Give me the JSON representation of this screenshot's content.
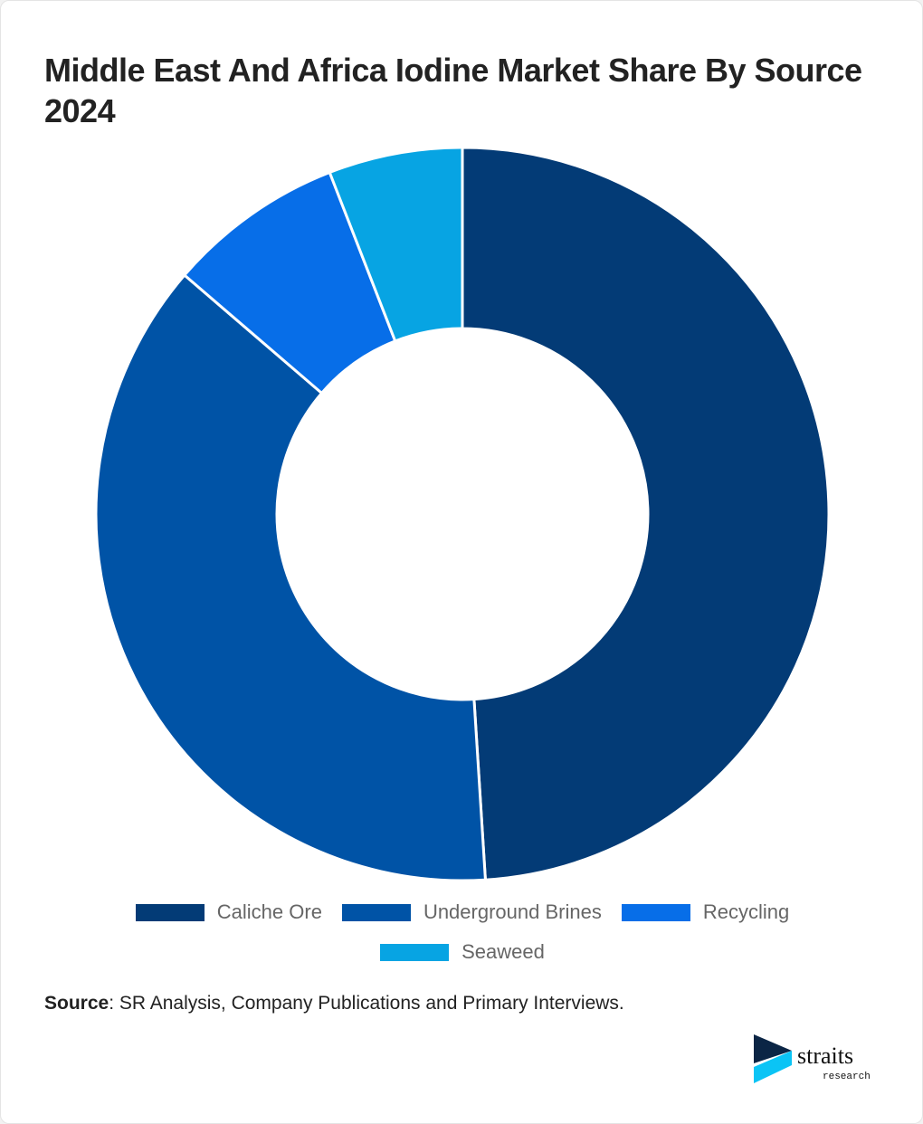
{
  "title": "Middle East And Africa Iodine Market Share By Source 2024",
  "chart_data": {
    "type": "pie",
    "variant": "donut",
    "title": "Middle East And Africa Iodine Market Share By Source 2024",
    "categories": [
      "Caliche Ore",
      "Underground Brines",
      "Recycling",
      "Seaweed"
    ],
    "values": [
      49.0,
      37.3,
      7.8,
      5.9
    ],
    "unit": "%",
    "colors": [
      "#033b76",
      "#0053a6",
      "#076ee8",
      "#07a4e3"
    ],
    "legend_position": "bottom"
  },
  "source": {
    "label": "Source",
    "text": ": SR Analysis, Company Publications and Primary Interviews."
  },
  "logo": {
    "name": "straits",
    "sub": "research"
  }
}
